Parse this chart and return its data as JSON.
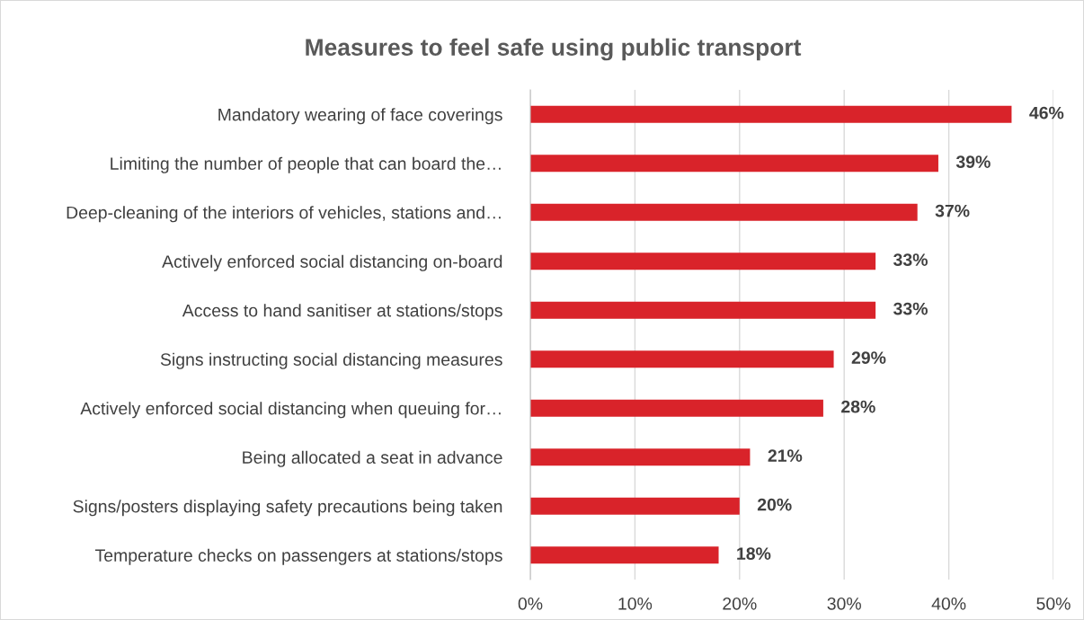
{
  "chart_data": {
    "type": "bar",
    "orientation": "horizontal",
    "title": "Measures to feel safe using public transport",
    "categories": [
      "Mandatory wearing of face coverings",
      "Limiting the number of people that can board the…",
      "Deep-cleaning of the interiors of vehicles, stations and…",
      "Actively enforced social distancing on-board",
      "Access to hand sanitiser at stations/stops",
      "Signs instructing social distancing measures",
      "Actively enforced social distancing when queuing for…",
      "Being allocated a seat in advance",
      "Signs/posters displaying safety precautions being taken",
      "Temperature checks on passengers at stations/stops"
    ],
    "values": [
      46,
      39,
      37,
      33,
      33,
      29,
      28,
      21,
      20,
      18
    ],
    "value_labels": [
      "46%",
      "39%",
      "37%",
      "33%",
      "33%",
      "29%",
      "28%",
      "21%",
      "20%",
      "18%"
    ],
    "color": "#d9232a",
    "xlim": [
      0,
      50
    ],
    "xticks": [
      {
        "value": 0,
        "label": "0%"
      },
      {
        "value": 10,
        "label": "10%"
      },
      {
        "value": 20,
        "label": "20%"
      },
      {
        "value": 30,
        "label": "30%"
      },
      {
        "value": 40,
        "label": "40%"
      },
      {
        "value": 50,
        "label": "50%"
      }
    ],
    "grid": "x",
    "legend": false
  }
}
